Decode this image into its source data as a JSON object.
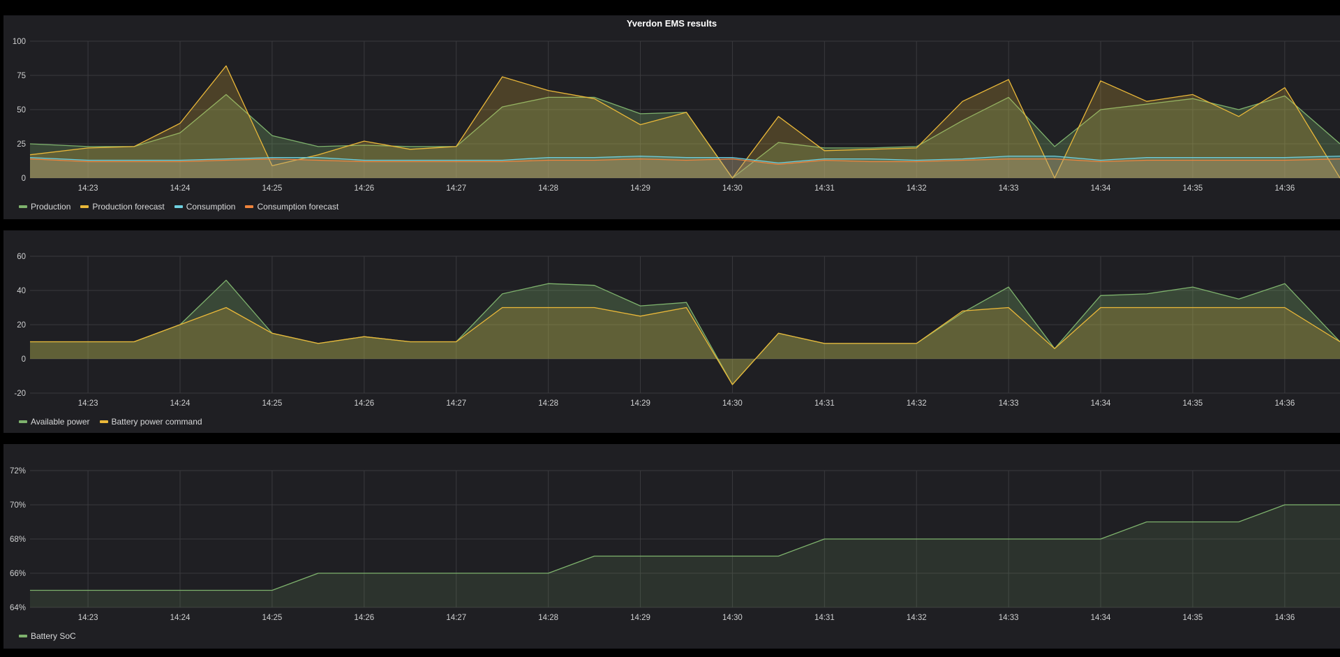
{
  "dashboard": {
    "title": "Yverdon EMS results"
  },
  "colors": {
    "production": "#7eb26d",
    "production_forecast": "#eab839",
    "consumption": "#6ed0e0",
    "consumption_forecast": "#ef843c",
    "battery_soc": "#7eb26d"
  },
  "chart_data": [
    {
      "type": "line",
      "title": "Yverdon EMS results",
      "x_ticks": [
        "14:23",
        "14:24",
        "14:25",
        "14:26",
        "14:27",
        "14:28",
        "14:29",
        "14:30",
        "14:31",
        "14:32",
        "14:33",
        "14:34",
        "14:35",
        "14:36"
      ],
      "x_range": [
        14.37,
        28.6
      ],
      "ylim": [
        0,
        100
      ],
      "y_ticks": [
        "0",
        "25",
        "50",
        "75",
        "100"
      ],
      "grid": true,
      "legend_placement": "bottom-left",
      "series": [
        {
          "name": "Production",
          "color_key": "production",
          "x": [
            14.37,
            15,
            15.5,
            16,
            16.5,
            17,
            17.5,
            18,
            18.5,
            19,
            19.5,
            20,
            20.5,
            21,
            21.5,
            22,
            22.5,
            23,
            23.5,
            24,
            24.5,
            25,
            25.5,
            26,
            26.5,
            27,
            27.5,
            28,
            28.6
          ],
          "values": [
            25,
            23,
            23,
            33,
            61,
            31,
            23,
            24,
            23,
            23,
            52,
            59,
            59,
            47,
            48,
            0,
            26,
            22,
            22,
            23,
            42,
            59,
            23,
            50,
            54,
            58,
            50,
            60,
            25
          ]
        },
        {
          "name": "Production forecast",
          "color_key": "production_forecast",
          "x": [
            14.37,
            15,
            15.5,
            16,
            16.5,
            17,
            17.5,
            18,
            18.5,
            19,
            19.5,
            20,
            20.5,
            21,
            21.5,
            22,
            22.5,
            23,
            23.5,
            24,
            24.5,
            25,
            25.5,
            26,
            26.5,
            27,
            27.5,
            28,
            28.6
          ],
          "values": [
            17,
            22,
            23,
            40,
            82,
            9,
            17,
            27,
            21,
            23,
            74,
            64,
            58,
            39,
            48,
            0,
            45,
            20,
            21,
            22,
            56,
            72,
            0,
            71,
            56,
            61,
            45,
            66,
            0
          ]
        },
        {
          "name": "Consumption",
          "color_key": "consumption",
          "x": [
            14.37,
            15,
            15.5,
            16,
            16.5,
            17,
            17.5,
            18,
            18.5,
            19,
            19.5,
            20,
            20.5,
            21,
            21.5,
            22,
            22.5,
            23,
            23.5,
            24,
            24.5,
            25,
            25.5,
            26,
            26.5,
            27,
            27.5,
            28,
            28.6
          ],
          "values": [
            15,
            13,
            13,
            13,
            14,
            15,
            15,
            13,
            13,
            13,
            13,
            15,
            15,
            16,
            15,
            15,
            11,
            14,
            14,
            13,
            14,
            16,
            16,
            13,
            15,
            15,
            15,
            15,
            16
          ]
        },
        {
          "name": "Consumption forecast",
          "color_key": "consumption_forecast",
          "x": [
            14.37,
            15,
            15.5,
            16,
            16.5,
            17,
            17.5,
            18,
            18.5,
            19,
            19.5,
            20,
            20.5,
            21,
            21.5,
            22,
            22.5,
            23,
            23.5,
            24,
            24.5,
            25,
            25.5,
            26,
            26.5,
            27,
            27.5,
            28,
            28.6
          ],
          "values": [
            14,
            12,
            12,
            12,
            13,
            14,
            13,
            12,
            12,
            12,
            12,
            13,
            13,
            14,
            13,
            14,
            10,
            13,
            12,
            12,
            13,
            14,
            14,
            12,
            13,
            13,
            13,
            13,
            14
          ]
        }
      ]
    },
    {
      "type": "line",
      "x_ticks": [
        "14:23",
        "14:24",
        "14:25",
        "14:26",
        "14:27",
        "14:28",
        "14:29",
        "14:30",
        "14:31",
        "14:32",
        "14:33",
        "14:34",
        "14:35",
        "14:36"
      ],
      "x_range": [
        14.37,
        28.6
      ],
      "ylim": [
        -20,
        60
      ],
      "y_ticks": [
        "-20",
        "0",
        "20",
        "40",
        "60"
      ],
      "grid": true,
      "legend_placement": "bottom-left",
      "series": [
        {
          "name": "Available power",
          "color_key": "production",
          "x": [
            14.37,
            15,
            15.5,
            16,
            16.5,
            17,
            17.5,
            18,
            18.5,
            19,
            19.5,
            20,
            20.5,
            21,
            21.5,
            22,
            22.5,
            23,
            23.5,
            24,
            24.5,
            25,
            25.5,
            26,
            26.5,
            27,
            27.5,
            28,
            28.6
          ],
          "values": [
            10,
            10,
            10,
            20,
            46,
            15,
            9,
            13,
            10,
            10,
            38,
            44,
            43,
            31,
            33,
            -15,
            15,
            9,
            9,
            9,
            27,
            42,
            6,
            37,
            38,
            42,
            35,
            44,
            10
          ]
        },
        {
          "name": "Battery power command",
          "color_key": "production_forecast",
          "x": [
            14.37,
            15,
            15.5,
            16,
            16.5,
            17,
            17.5,
            18,
            18.5,
            19,
            19.5,
            20,
            20.5,
            21,
            21.5,
            22,
            22.5,
            23,
            23.5,
            24,
            24.5,
            25,
            25.5,
            26,
            26.5,
            27,
            27.5,
            28,
            28.6
          ],
          "values": [
            10,
            10,
            10,
            20,
            30,
            15,
            9,
            13,
            10,
            10,
            30,
            30,
            30,
            25,
            30,
            -15,
            15,
            9,
            9,
            9,
            28,
            30,
            6,
            30,
            30,
            30,
            30,
            30,
            10
          ]
        }
      ]
    },
    {
      "type": "area",
      "x_ticks": [
        "14:23",
        "14:24",
        "14:25",
        "14:26",
        "14:27",
        "14:28",
        "14:29",
        "14:30",
        "14:31",
        "14:32",
        "14:33",
        "14:34",
        "14:35",
        "14:36"
      ],
      "x_range": [
        14.37,
        28.6
      ],
      "ylim": [
        64,
        72
      ],
      "y_ticks": [
        "64%",
        "66%",
        "68%",
        "70%",
        "72%"
      ],
      "grid": true,
      "legend_placement": "bottom-left",
      "series": [
        {
          "name": "Battery SoC",
          "color_key": "battery_soc",
          "x": [
            14.37,
            15,
            16,
            17,
            17.5,
            18,
            19,
            20,
            20.5,
            21,
            22,
            22.5,
            23,
            24,
            25,
            26,
            26.5,
            27,
            27.5,
            28,
            28.6
          ],
          "values": [
            65,
            65,
            65,
            65,
            66,
            66,
            66,
            66,
            67,
            67,
            67,
            67,
            68,
            68,
            68,
            68,
            69,
            69,
            69,
            70,
            70
          ]
        }
      ]
    }
  ]
}
